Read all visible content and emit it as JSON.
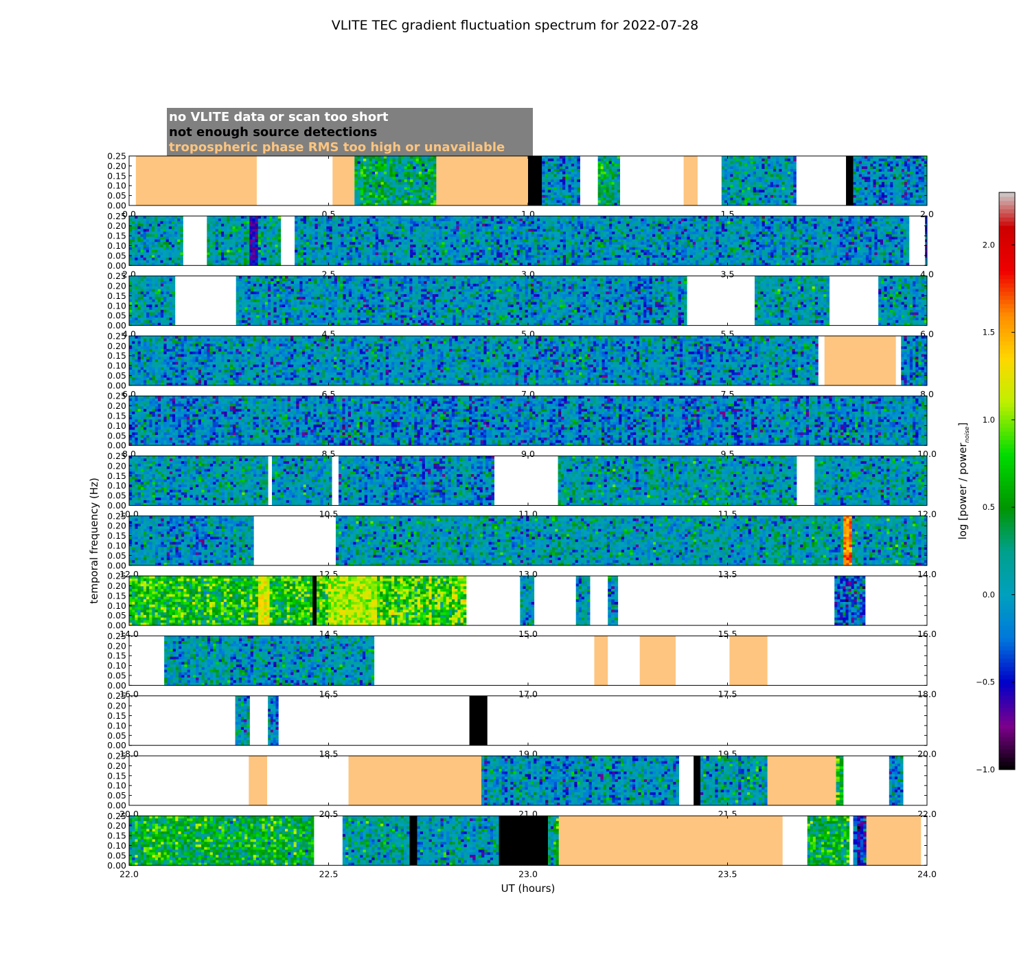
{
  "chart_data": {
    "type": "heatmap",
    "title": "VLITE TEC gradient fluctuation spectrum for 2022-07-28",
    "xlabel": "UT (hours)",
    "ylabel": "temporal frequency (Hz)",
    "ylim": [
      0,
      0.25
    ],
    "ytick_labels": [
      "0.00",
      "0.05",
      "0.10",
      "0.15",
      "0.20",
      "0.25"
    ],
    "xtick_labels": [
      [
        "0.0",
        "0.5",
        "1.0",
        "1.5",
        "2.0"
      ],
      [
        "2.0",
        "2.5",
        "3.0",
        "3.5",
        "4.0"
      ],
      [
        "4.0",
        "4.5",
        "5.0",
        "5.5",
        "6.0"
      ],
      [
        "6.0",
        "6.5",
        "7.0",
        "7.5",
        "8.0"
      ],
      [
        "8.0",
        "8.5",
        "9.0",
        "9.5",
        "10.0"
      ],
      [
        "10.0",
        "10.5",
        "11.0",
        "11.5",
        "12.0"
      ],
      [
        "12.0",
        "12.5",
        "13.0",
        "13.5",
        "14.0"
      ],
      [
        "14.0",
        "14.5",
        "15.0",
        "15.5",
        "16.0"
      ],
      [
        "16.0",
        "16.5",
        "17.0",
        "17.5",
        "18.0"
      ],
      [
        "18.0",
        "18.5",
        "19.0",
        "19.5",
        "20.0"
      ],
      [
        "20.0",
        "20.5",
        "21.0",
        "21.5",
        "22.0"
      ],
      [
        "22.0",
        "22.5",
        "23.0",
        "23.5",
        "24.0"
      ]
    ],
    "legend": {
      "placement": "top-left",
      "entries": [
        {
          "label": "no VLITE data or scan too short",
          "color": "#ffffff"
        },
        {
          "label": "not enough source detections",
          "color": "#000000"
        },
        {
          "label": "tropospheric phase RMS too high or unavailable",
          "color": "#fdc57f"
        }
      ],
      "background": "#808080"
    },
    "colorbar": {
      "label": "log [power / power",
      "label_subscript": "noise",
      "label_end": "]",
      "range": [
        -1.0,
        2.3
      ],
      "tick_labels": [
        "−1.0",
        "−0.5",
        "0.0",
        "0.5",
        "1.0",
        "1.5",
        "2.0"
      ],
      "tick_values": [
        -1.0,
        -0.5,
        0.0,
        0.5,
        1.0,
        1.5,
        2.0
      ],
      "colormap": "spectral"
    },
    "panels": [
      {
        "start": 0,
        "segments": [
          {
            "x0": 0.0,
            "x1": 0.017,
            "kind": "empty"
          },
          {
            "x0": 0.017,
            "x1": 0.32,
            "kind": "tropo"
          },
          {
            "x0": 0.32,
            "x1": 0.51,
            "kind": "empty"
          },
          {
            "x0": 0.51,
            "x1": 0.565,
            "kind": "tropo"
          },
          {
            "x0": 0.565,
            "x1": 0.77,
            "kind": "data",
            "level": 0.15,
            "greenery": 0.45
          },
          {
            "x0": 0.77,
            "x1": 1.0,
            "kind": "tropo"
          },
          {
            "x0": 1.0,
            "x1": 1.035,
            "kind": "nodet"
          },
          {
            "x0": 1.035,
            "x1": 1.13,
            "kind": "data",
            "level": -0.1
          },
          {
            "x0": 1.13,
            "x1": 1.175,
            "kind": "empty"
          },
          {
            "x0": 1.175,
            "x1": 1.23,
            "kind": "data",
            "level": 0.2,
            "greenery": 0.5
          },
          {
            "x0": 1.23,
            "x1": 1.39,
            "kind": "empty"
          },
          {
            "x0": 1.39,
            "x1": 1.425,
            "kind": "tropo"
          },
          {
            "x0": 1.425,
            "x1": 1.485,
            "kind": "empty"
          },
          {
            "x0": 1.485,
            "x1": 1.672,
            "kind": "data",
            "level": 0.0
          },
          {
            "x0": 1.672,
            "x1": 1.797,
            "kind": "empty"
          },
          {
            "x0": 1.797,
            "x1": 1.815,
            "kind": "nodet"
          },
          {
            "x0": 1.815,
            "x1": 2.0,
            "kind": "data",
            "level": -0.1
          }
        ]
      },
      {
        "start": 2,
        "segments": [
          {
            "x0": 2.0,
            "x1": 2.135,
            "kind": "data",
            "level": 0.05
          },
          {
            "x0": 2.135,
            "x1": 2.195,
            "kind": "empty"
          },
          {
            "x0": 2.195,
            "x1": 2.38,
            "kind": "data",
            "level": 0.1,
            "hot": [
              2.3,
              2.32,
              -0.6
            ]
          },
          {
            "x0": 2.38,
            "x1": 2.415,
            "kind": "empty"
          },
          {
            "x0": 2.415,
            "x1": 3.955,
            "kind": "data",
            "level": -0.05
          },
          {
            "x0": 3.955,
            "x1": 3.995,
            "kind": "empty"
          },
          {
            "x0": 3.995,
            "x1": 4.0,
            "kind": "data",
            "level": -0.3
          }
        ]
      },
      {
        "start": 4,
        "segments": [
          {
            "x0": 4.0,
            "x1": 4.115,
            "kind": "data",
            "level": 0.0
          },
          {
            "x0": 4.115,
            "x1": 4.268,
            "kind": "empty"
          },
          {
            "x0": 4.268,
            "x1": 5.398,
            "kind": "data",
            "level": -0.05
          },
          {
            "x0": 5.398,
            "x1": 5.568,
            "kind": "empty"
          },
          {
            "x0": 5.568,
            "x1": 5.755,
            "kind": "data",
            "level": 0.05
          },
          {
            "x0": 5.755,
            "x1": 5.878,
            "kind": "empty"
          },
          {
            "x0": 5.878,
            "x1": 6.0,
            "kind": "data",
            "level": 0.05
          }
        ]
      },
      {
        "start": 6,
        "segments": [
          {
            "x0": 6.0,
            "x1": 7.727,
            "kind": "data",
            "level": -0.05
          },
          {
            "x0": 7.727,
            "x1": 7.743,
            "kind": "empty"
          },
          {
            "x0": 7.743,
            "x1": 7.922,
            "kind": "tropo"
          },
          {
            "x0": 7.922,
            "x1": 7.935,
            "kind": "empty"
          },
          {
            "x0": 7.935,
            "x1": 8.0,
            "kind": "data",
            "level": -0.05
          }
        ]
      },
      {
        "start": 8,
        "segments": [
          {
            "x0": 8.0,
            "x1": 10.0,
            "kind": "data",
            "level": -0.1
          }
        ]
      },
      {
        "start": 10,
        "segments": [
          {
            "x0": 10.0,
            "x1": 10.348,
            "kind": "data",
            "level": 0.0
          },
          {
            "x0": 10.348,
            "x1": 10.358,
            "kind": "empty"
          },
          {
            "x0": 10.358,
            "x1": 10.508,
            "kind": "data",
            "level": 0.0
          },
          {
            "x0": 10.508,
            "x1": 10.525,
            "kind": "empty"
          },
          {
            "x0": 10.525,
            "x1": 10.915,
            "kind": "data",
            "level": -0.1
          },
          {
            "x0": 10.915,
            "x1": 11.075,
            "kind": "empty"
          },
          {
            "x0": 11.075,
            "x1": 11.673,
            "kind": "data",
            "level": 0.05
          },
          {
            "x0": 11.673,
            "x1": 11.718,
            "kind": "empty"
          },
          {
            "x0": 11.718,
            "x1": 12.0,
            "kind": "data",
            "level": 0.0
          }
        ]
      },
      {
        "start": 12,
        "segments": [
          {
            "x0": 12.0,
            "x1": 12.312,
            "kind": "data",
            "level": -0.05
          },
          {
            "x0": 12.312,
            "x1": 12.518,
            "kind": "empty"
          },
          {
            "x0": 12.518,
            "x1": 14.0,
            "kind": "data",
            "level": 0.05,
            "hot": [
              13.79,
              13.81,
              1.6
            ]
          }
        ]
      },
      {
        "start": 14,
        "segments": [
          {
            "x0": 14.0,
            "x1": 14.46,
            "kind": "data",
            "level": 0.45,
            "greenery": 0.6,
            "hot": [
              14.32,
              14.35,
              1.2
            ]
          },
          {
            "x0": 14.46,
            "x1": 14.47,
            "kind": "nodet"
          },
          {
            "x0": 14.47,
            "x1": 14.845,
            "kind": "data",
            "level": 0.55,
            "greenery": 0.7,
            "hot": [
              14.5,
              14.62,
              1.1
            ]
          },
          {
            "x0": 14.845,
            "x1": 14.98,
            "kind": "empty"
          },
          {
            "x0": 14.98,
            "x1": 15.015,
            "kind": "data",
            "level": 0.0
          },
          {
            "x0": 15.015,
            "x1": 15.12,
            "kind": "empty"
          },
          {
            "x0": 15.12,
            "x1": 15.155,
            "kind": "data",
            "level": 0.0
          },
          {
            "x0": 15.155,
            "x1": 15.2,
            "kind": "empty"
          },
          {
            "x0": 15.2,
            "x1": 15.225,
            "kind": "data",
            "level": -0.1
          },
          {
            "x0": 15.225,
            "x1": 15.768,
            "kind": "empty"
          },
          {
            "x0": 15.768,
            "x1": 15.845,
            "kind": "data",
            "level": -0.2
          },
          {
            "x0": 15.845,
            "x1": 16.0,
            "kind": "empty"
          }
        ]
      },
      {
        "start": 16,
        "segments": [
          {
            "x0": 16.0,
            "x1": 16.088,
            "kind": "empty"
          },
          {
            "x0": 16.088,
            "x1": 16.614,
            "kind": "data",
            "level": 0.0
          },
          {
            "x0": 16.614,
            "x1": 17.166,
            "kind": "empty"
          },
          {
            "x0": 17.166,
            "x1": 17.2,
            "kind": "tropo"
          },
          {
            "x0": 17.2,
            "x1": 17.28,
            "kind": "empty"
          },
          {
            "x0": 17.28,
            "x1": 17.37,
            "kind": "tropo"
          },
          {
            "x0": 17.37,
            "x1": 17.505,
            "kind": "empty"
          },
          {
            "x0": 17.505,
            "x1": 17.6,
            "kind": "tropo"
          },
          {
            "x0": 17.6,
            "x1": 18.0,
            "kind": "empty"
          }
        ]
      },
      {
        "start": 18,
        "segments": [
          {
            "x0": 18.0,
            "x1": 18.266,
            "kind": "empty"
          },
          {
            "x0": 18.266,
            "x1": 18.302,
            "kind": "data",
            "level": 0.0
          },
          {
            "x0": 18.302,
            "x1": 18.348,
            "kind": "empty"
          },
          {
            "x0": 18.348,
            "x1": 18.374,
            "kind": "data",
            "level": -0.1
          },
          {
            "x0": 18.374,
            "x1": 18.853,
            "kind": "empty"
          },
          {
            "x0": 18.853,
            "x1": 18.898,
            "kind": "nodet"
          },
          {
            "x0": 18.898,
            "x1": 20.0,
            "kind": "empty"
          }
        ]
      },
      {
        "start": 20,
        "segments": [
          {
            "x0": 20.0,
            "x1": 20.3,
            "kind": "empty"
          },
          {
            "x0": 20.3,
            "x1": 20.346,
            "kind": "tropo"
          },
          {
            "x0": 20.346,
            "x1": 20.55,
            "kind": "empty"
          },
          {
            "x0": 20.55,
            "x1": 20.883,
            "kind": "tropo"
          },
          {
            "x0": 20.883,
            "x1": 21.378,
            "kind": "data",
            "level": -0.05
          },
          {
            "x0": 21.378,
            "x1": 21.415,
            "kind": "empty"
          },
          {
            "x0": 21.415,
            "x1": 21.432,
            "kind": "nodet"
          },
          {
            "x0": 21.432,
            "x1": 21.6,
            "kind": "data",
            "level": 0.05
          },
          {
            "x0": 21.6,
            "x1": 21.772,
            "kind": "tropo"
          },
          {
            "x0": 21.772,
            "x1": 21.79,
            "kind": "data",
            "level": 0.4,
            "greenery": 0.6
          },
          {
            "x0": 21.79,
            "x1": 21.905,
            "kind": "empty"
          },
          {
            "x0": 21.905,
            "x1": 21.94,
            "kind": "data",
            "level": -0.1
          },
          {
            "x0": 21.94,
            "x1": 22.0,
            "kind": "empty"
          }
        ]
      },
      {
        "start": 22,
        "segments": [
          {
            "x0": 22.0,
            "x1": 22.463,
            "kind": "data",
            "level": 0.3,
            "greenery": 0.5
          },
          {
            "x0": 22.463,
            "x1": 22.535,
            "kind": "empty"
          },
          {
            "x0": 22.535,
            "x1": 22.703,
            "kind": "data",
            "level": 0.1
          },
          {
            "x0": 22.703,
            "x1": 22.722,
            "kind": "nodet"
          },
          {
            "x0": 22.722,
            "x1": 22.927,
            "kind": "data",
            "level": 0.05
          },
          {
            "x0": 22.927,
            "x1": 23.05,
            "kind": "nodet"
          },
          {
            "x0": 23.05,
            "x1": 23.077,
            "kind": "data",
            "level": 0.2
          },
          {
            "x0": 23.077,
            "x1": 23.638,
            "kind": "tropo"
          },
          {
            "x0": 23.638,
            "x1": 23.7,
            "kind": "empty"
          },
          {
            "x0": 23.7,
            "x1": 23.805,
            "kind": "data",
            "level": 0.3,
            "greenery": 0.5
          },
          {
            "x0": 23.805,
            "x1": 23.815,
            "kind": "empty"
          },
          {
            "x0": 23.815,
            "x1": 23.825,
            "kind": "data",
            "level": -0.3
          },
          {
            "x0": 23.825,
            "x1": 23.848,
            "kind": "data",
            "level": -0.5
          },
          {
            "x0": 23.848,
            "x1": 23.985,
            "kind": "tropo"
          },
          {
            "x0": 23.985,
            "x1": 24.0,
            "kind": "empty"
          }
        ]
      }
    ]
  }
}
